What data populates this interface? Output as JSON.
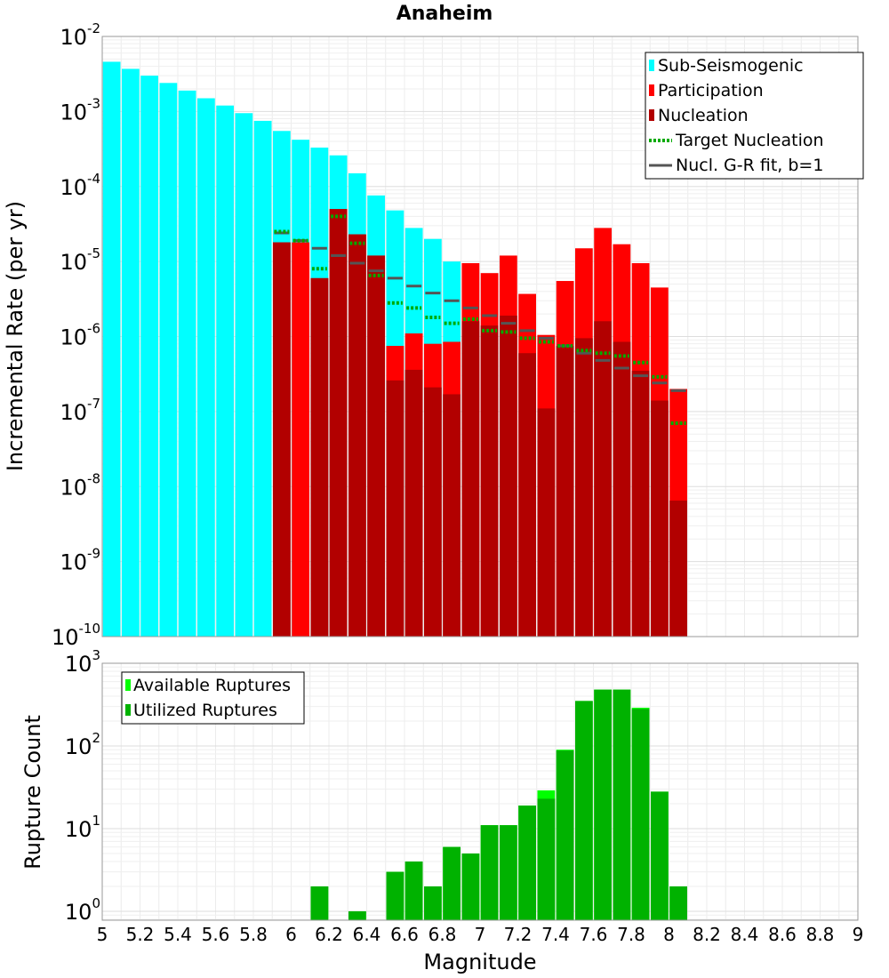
{
  "chart_data": [
    {
      "type": "bar",
      "title": "Anaheim",
      "xlabel": "Magnitude",
      "ylabel": "Incremental Rate (per yr)",
      "xlim": [
        5,
        9
      ],
      "ylim": [
        1e-10,
        0.01
      ],
      "yscale": "log",
      "grid": true,
      "legend_position": "top-right",
      "x_ticks": [
        "5",
        "5.2",
        "5.4",
        "5.6",
        "5.8",
        "6",
        "6.2",
        "6.4",
        "6.6",
        "6.8",
        "7",
        "7.2",
        "7.4",
        "7.6",
        "7.8",
        "8",
        "8.2",
        "8.4",
        "8.6",
        "8.8",
        "9"
      ],
      "y_ticks": [
        {
          "base": "10",
          "exp": "-10",
          "value": 1e-10
        },
        {
          "base": "10",
          "exp": "-9",
          "value": 1e-09
        },
        {
          "base": "10",
          "exp": "-8",
          "value": 1e-08
        },
        {
          "base": "10",
          "exp": "-7",
          "value": 1e-07
        },
        {
          "base": "10",
          "exp": "-6",
          "value": 1e-06
        },
        {
          "base": "10",
          "exp": "-5",
          "value": 1e-05
        },
        {
          "base": "10",
          "exp": "-4",
          "value": 0.0001
        },
        {
          "base": "10",
          "exp": "-3",
          "value": 0.001
        },
        {
          "base": "10",
          "exp": "-2",
          "value": 0.01
        }
      ],
      "series": [
        {
          "name": "Sub-Seismogenic",
          "style": "bar",
          "color": "#00ffff",
          "x": [
            5.05,
            5.15,
            5.25,
            5.35,
            5.45,
            5.55,
            5.65,
            5.75,
            5.85,
            5.95,
            6.05,
            6.15,
            6.25,
            6.35,
            6.45,
            6.55,
            6.65,
            6.75,
            6.85
          ],
          "values": [
            0.0046,
            0.0037,
            0.003,
            0.0024,
            0.0019,
            0.0015,
            0.0012,
            0.00095,
            0.00075,
            0.00055,
            0.00042,
            0.00033,
            0.00026,
            0.00015,
            7.6e-05,
            4.8e-05,
            2.8e-05,
            2e-05,
            1e-05
          ]
        },
        {
          "name": "Participation",
          "style": "bar",
          "color": "#ff0000",
          "x": [
            5.95,
            6.05,
            6.15,
            6.25,
            6.35,
            6.45,
            6.55,
            6.65,
            6.75,
            6.85,
            6.95,
            7.05,
            7.15,
            7.25,
            7.35,
            7.45,
            7.55,
            7.65,
            7.75,
            7.85,
            7.95,
            8.05
          ],
          "values": [
            1.8e-05,
            1.8e-05,
            6e-06,
            5e-05,
            2.3e-05,
            1.2e-05,
            7.5e-07,
            1.1e-06,
            8e-07,
            8.5e-07,
            9.5e-06,
            7e-06,
            1.2e-05,
            3.7e-06,
            1.05e-06,
            5.5e-06,
            1.5e-05,
            2.8e-05,
            1.7e-05,
            9.5e-06,
            4.5e-06,
            2e-07
          ]
        },
        {
          "name": "Nucleation",
          "style": "bar",
          "color": "#b20000",
          "x": [
            5.95,
            6.15,
            6.25,
            6.35,
            6.45,
            6.55,
            6.65,
            6.75,
            6.85,
            6.95,
            7.05,
            7.15,
            7.25,
            7.35,
            7.45,
            7.55,
            7.65,
            7.75,
            7.85,
            7.95,
            8.05
          ],
          "values": [
            1.8e-05,
            6e-06,
            5e-05,
            2.3e-05,
            1.2e-05,
            2.6e-07,
            3.6e-07,
            2.1e-07,
            1.7e-07,
            1.6e-06,
            1.4e-06,
            1.9e-06,
            6e-07,
            1.1e-07,
            7.5e-07,
            9.5e-07,
            1.6e-06,
            8.5e-07,
            3.5e-07,
            1.4e-07,
            6.5e-09
          ]
        },
        {
          "name": "Target Nucleation",
          "style": "dotted-step",
          "color": "#00aa00",
          "x": [
            5.95,
            6.05,
            6.15,
            6.25,
            6.35,
            6.45,
            6.55,
            6.65,
            6.75,
            6.85,
            6.95,
            7.05,
            7.15,
            7.25,
            7.35,
            7.45,
            7.55,
            7.65,
            7.75,
            7.85,
            7.95,
            8.05
          ],
          "values": [
            2.5e-05,
            1.9e-05,
            8e-06,
            4e-05,
            1.75e-05,
            6.5e-06,
            2.8e-06,
            2.4e-06,
            1.8e-06,
            1.5e-06,
            1.7e-06,
            1.2e-06,
            1.15e-06,
            9.5e-07,
            8.5e-07,
            7.5e-07,
            6.5e-07,
            6e-07,
            5.5e-07,
            4.5e-07,
            2.9e-07,
            7e-08
          ]
        },
        {
          "name": "Nucl. G-R fit, b=1",
          "style": "solid-step",
          "color": "#555555",
          "x": [
            5.95,
            6.05,
            6.15,
            6.25,
            6.35,
            6.45,
            6.55,
            6.65,
            6.75,
            6.85,
            6.95,
            7.05,
            7.15,
            7.25,
            7.35,
            7.45,
            7.55,
            7.65,
            7.75,
            7.85,
            7.95,
            8.05
          ],
          "values": [
            2.4e-05,
            1.9e-05,
            1.5e-05,
            1.2e-05,
            9.5e-06,
            7.5e-06,
            6e-06,
            4.7e-06,
            3.8e-06,
            3e-06,
            2.4e-06,
            1.9e-06,
            1.5e-06,
            1.2e-06,
            9.5e-07,
            7.5e-07,
            6e-07,
            4.8e-07,
            3.8e-07,
            3e-07,
            2.4e-07,
            1.9e-07
          ]
        }
      ]
    },
    {
      "type": "bar",
      "xlabel": "Magnitude",
      "ylabel": "Rupture Count",
      "xlim": [
        5,
        9
      ],
      "ylim": [
        0.78,
        1000
      ],
      "yscale": "log",
      "grid": true,
      "legend_position": "top-left",
      "y_ticks": [
        {
          "base": "10",
          "exp": "0",
          "value": 1
        },
        {
          "base": "10",
          "exp": "1",
          "value": 10
        },
        {
          "base": "10",
          "exp": "2",
          "value": 100
        },
        {
          "base": "10",
          "exp": "3",
          "value": 1000
        }
      ],
      "series": [
        {
          "name": "Available Ruptures",
          "color": "#00ff00",
          "x": [
            6.15,
            6.35,
            6.55,
            6.65,
            6.75,
            6.85,
            6.95,
            7.05,
            7.15,
            7.25,
            7.35,
            7.45,
            7.55,
            7.65,
            7.75,
            7.85,
            7.95,
            8.05
          ],
          "values": [
            2,
            1,
            3,
            4,
            2,
            6,
            5,
            11,
            11,
            19,
            29,
            90,
            350,
            480,
            480,
            290,
            28,
            2
          ]
        },
        {
          "name": "Utilized Ruptures",
          "color": "#00b200",
          "x": [
            6.15,
            6.35,
            6.55,
            6.65,
            6.75,
            6.85,
            6.95,
            7.05,
            7.15,
            7.25,
            7.35,
            7.45,
            7.55,
            7.65,
            7.75,
            7.85,
            7.95,
            8.05
          ],
          "values": [
            2,
            1,
            3,
            4,
            2,
            6,
            5,
            11,
            11,
            19,
            23,
            88,
            350,
            480,
            480,
            280,
            28,
            2
          ]
        }
      ]
    }
  ]
}
